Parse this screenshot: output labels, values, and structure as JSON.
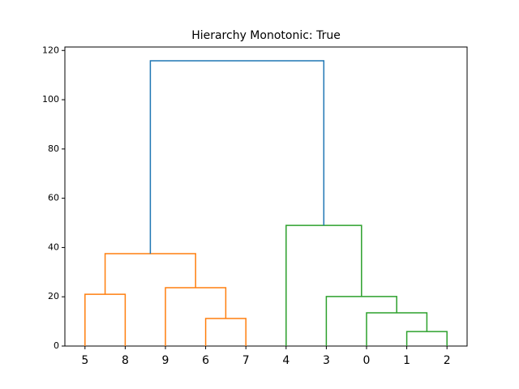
{
  "chart_data": {
    "type": "dendrogram",
    "title": "Hierarchy Monotonic: True",
    "labels": [
      "0",
      "1",
      "2",
      "3",
      "4",
      "5",
      "6",
      "7",
      "8",
      "9"
    ],
    "links": [
      {
        "children": [
          5,
          8
        ],
        "height": 21.0,
        "color": "#ff7f0e"
      },
      {
        "children": [
          6,
          7
        ],
        "height": 11.2,
        "color": "#ff7f0e"
      },
      {
        "children": [
          9,
          11
        ],
        "height": 23.7,
        "color": "#ff7f0e"
      },
      {
        "children": [
          10,
          12
        ],
        "height": 37.5,
        "color": "#ff7f0e"
      },
      {
        "children": [
          1,
          2
        ],
        "height": 5.9,
        "color": "#2ca02c"
      },
      {
        "children": [
          0,
          14
        ],
        "height": 13.5,
        "color": "#2ca02c"
      },
      {
        "children": [
          3,
          15
        ],
        "height": 20.1,
        "color": "#2ca02c"
      },
      {
        "children": [
          4,
          16
        ],
        "height": 49.0,
        "color": "#2ca02c"
      },
      {
        "children": [
          13,
          17
        ],
        "height": 115.8,
        "color": "#1f77b4"
      }
    ],
    "ylim": [
      0,
      121.4
    ],
    "yticks": [
      0,
      20,
      40,
      60,
      80,
      100,
      120
    ]
  }
}
